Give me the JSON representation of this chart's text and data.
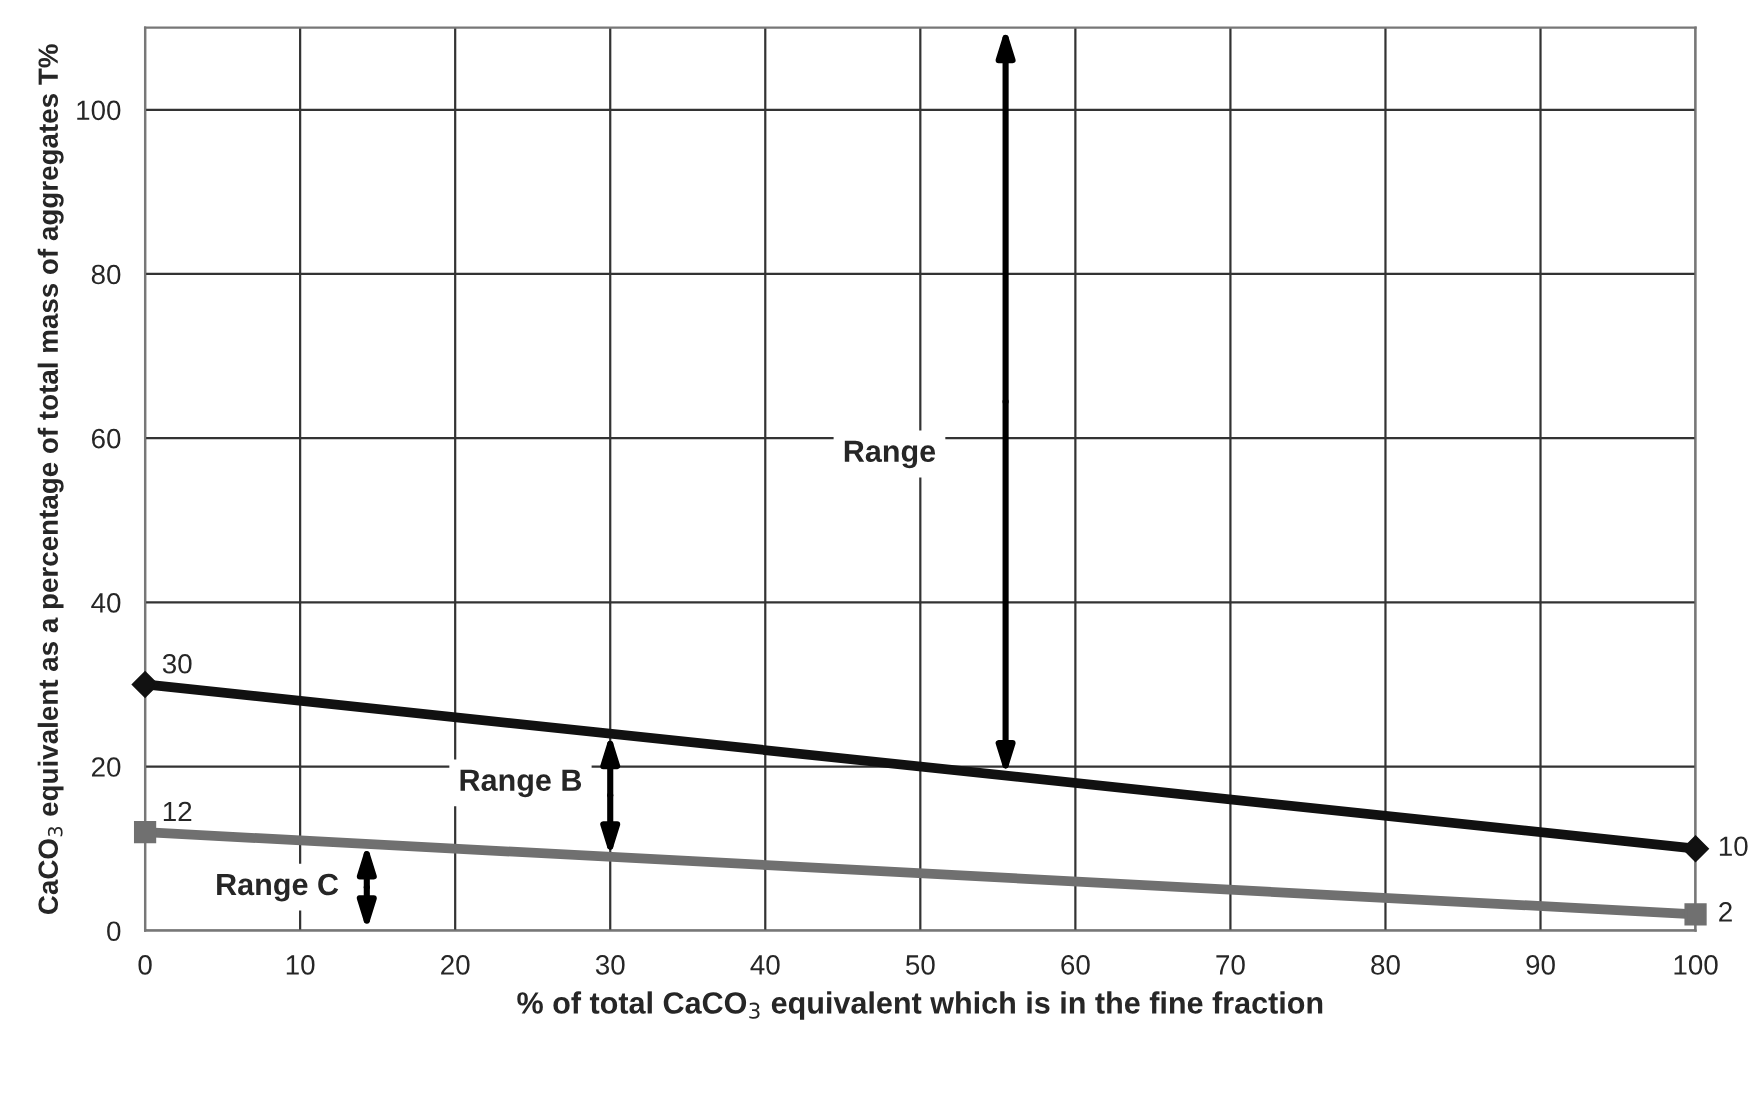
{
  "chart_data": {
    "type": "line",
    "xlabel": "% of total CaCO$_{3}$ equivalent which is in the fine fraction",
    "ylabel": "CaCO$_{3}$ equivalent as a percentage of total mass of aggregates T%",
    "x": [
      0,
      100
    ],
    "series": [
      {
        "color": "#111111",
        "values": [
          30,
          10
        ],
        "marker": "diamond"
      },
      {
        "color": "#707070",
        "values": [
          12,
          2
        ],
        "marker": "square"
      }
    ],
    "data_labels": true,
    "xlim": [
      0,
      100
    ],
    "ylim": [
      0,
      110
    ],
    "xticks": [
      0,
      10,
      20,
      30,
      40,
      50,
      60,
      70,
      80,
      90,
      100
    ],
    "yticks": [
      0,
      20,
      40,
      60,
      80,
      100
    ],
    "grid": true,
    "line_style": "solid",
    "annotations": [
      "Range",
      {
        "text": "Range B",
        "x": 30,
        "y": 9
      },
      {
        "text": "Range C",
        "x": 14.3,
        "y": 10.6
      }
    ]
  }
}
